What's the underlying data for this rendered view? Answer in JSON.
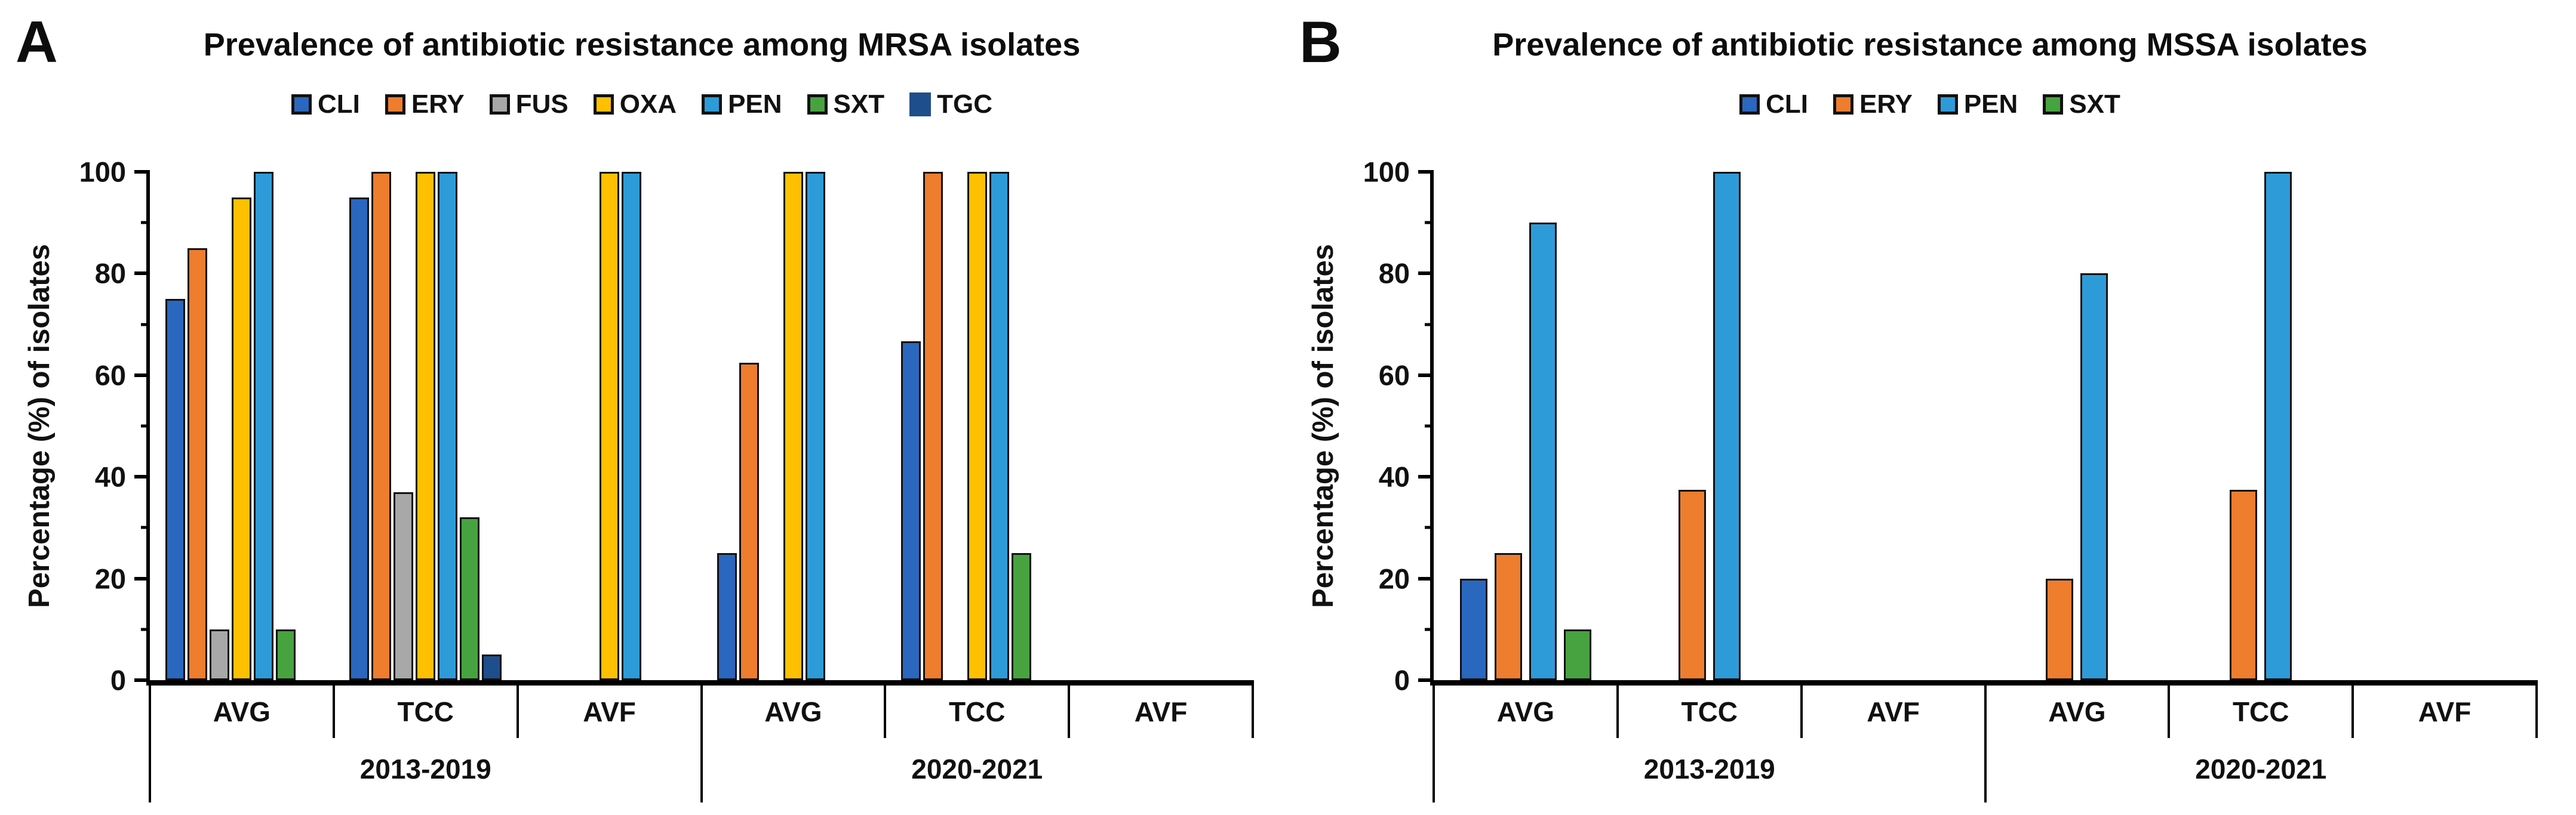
{
  "figure": {
    "background": "#ffffff",
    "text_color": "#0d0d0d"
  },
  "chart_data": [
    {
      "type": "bar",
      "panel_label": "A",
      "title": "Prevalence of antibiotic resistance among MRSA isolates",
      "ylabel": "Percentage (%) of isolates",
      "ylim": [
        0,
        100
      ],
      "yticks": [
        0,
        20,
        40,
        60,
        80,
        100
      ],
      "minor_yticks": [
        10,
        30,
        50,
        70,
        90
      ],
      "grid": "off",
      "legend_position": "top-center",
      "group_labels": [
        "AVG",
        "TCC",
        "AVF",
        "AVG",
        "TCC",
        "AVF"
      ],
      "period_labels": [
        "2013-2019",
        "2020-2021"
      ],
      "series": [
        {
          "name": "CLI",
          "color": "#2A67BE",
          "values": [
            75,
            95,
            0,
            25,
            66.7,
            0
          ]
        },
        {
          "name": "ERY",
          "color": "#EE7D2E",
          "values": [
            85,
            100,
            0,
            62.5,
            100,
            0
          ]
        },
        {
          "name": "FUS",
          "color": "#A8A8A8",
          "values": [
            10,
            37,
            0,
            0,
            0,
            0
          ]
        },
        {
          "name": "OXA",
          "color": "#FFC001",
          "values": [
            95,
            100,
            100,
            100,
            100,
            0
          ]
        },
        {
          "name": "PEN",
          "color": "#2E9BD9",
          "values": [
            100,
            100,
            100,
            100,
            100,
            0
          ]
        },
        {
          "name": "SXT",
          "color": "#47A33F",
          "values": [
            10,
            32,
            0,
            0,
            25,
            0
          ]
        },
        {
          "name": "TGC",
          "color": "#1F4E8C",
          "values": [
            0,
            5,
            0,
            0,
            0,
            0
          ],
          "swatch_no_border": true
        }
      ]
    },
    {
      "type": "bar",
      "panel_label": "B",
      "title": "Prevalence of antibiotic resistance among MSSA isolates",
      "ylabel": "Percentage (%) of isolates",
      "ylim": [
        0,
        100
      ],
      "yticks": [
        0,
        20,
        40,
        60,
        80,
        100
      ],
      "minor_yticks": [
        10,
        30,
        50,
        70,
        90
      ],
      "grid": "off",
      "legend_position": "top-center",
      "group_labels": [
        "AVG",
        "TCC",
        "AVF",
        "AVG",
        "TCC",
        "AVF"
      ],
      "period_labels": [
        "2013-2019",
        "2020-2021"
      ],
      "series": [
        {
          "name": "CLI",
          "color": "#2A67BE",
          "values": [
            20,
            0,
            0,
            0,
            0,
            0
          ]
        },
        {
          "name": "ERY",
          "color": "#EE7D2E",
          "values": [
            25,
            37.5,
            0,
            20,
            37.5,
            0
          ]
        },
        {
          "name": "PEN",
          "color": "#2E9BD9",
          "values": [
            90,
            100,
            0,
            80,
            100,
            0
          ]
        },
        {
          "name": "SXT",
          "color": "#47A33F",
          "values": [
            10,
            0,
            0,
            0,
            0,
            0
          ]
        }
      ]
    }
  ]
}
